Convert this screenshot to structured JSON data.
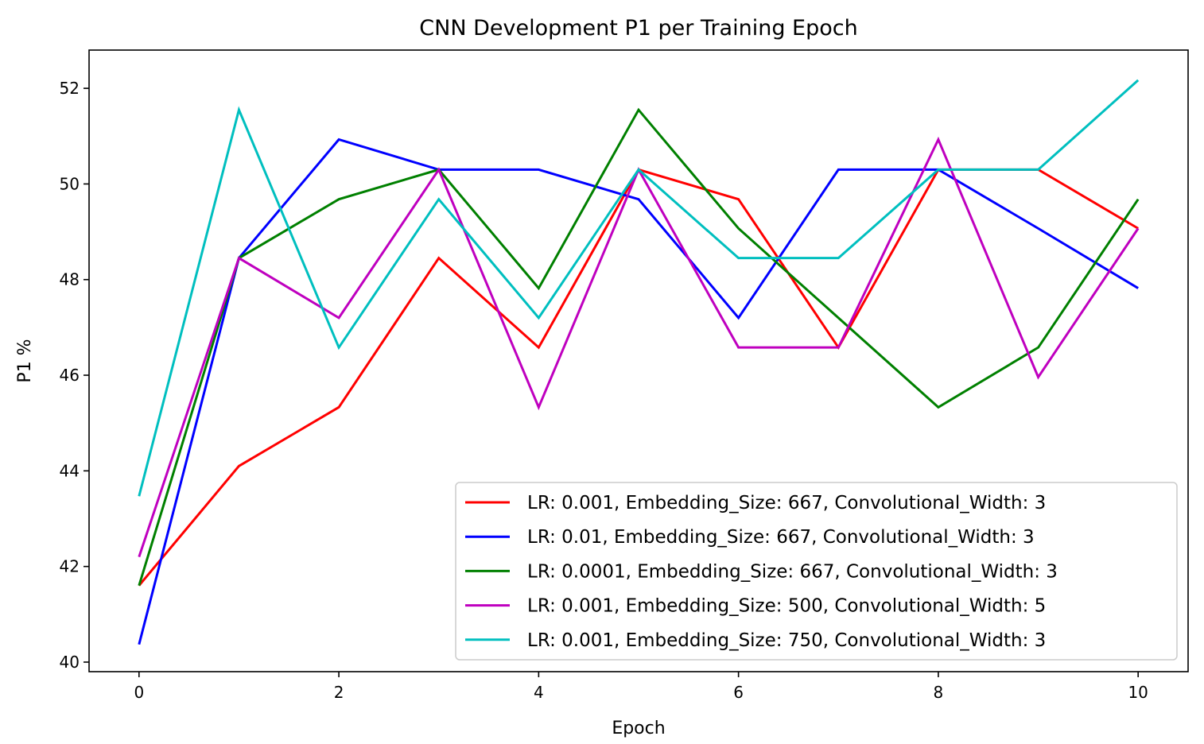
{
  "chart_data": {
    "type": "line",
    "title": "CNN Development P1 per Training Epoch",
    "xlabel": "Epoch",
    "ylabel": "P1 %",
    "xlim": [
      -0.5,
      10.5
    ],
    "ylim": [
      39.8,
      52.8
    ],
    "xticks": [
      0,
      2,
      4,
      6,
      8,
      10
    ],
    "yticks": [
      40,
      42,
      44,
      46,
      48,
      50,
      52
    ],
    "legend_position": "lower-right",
    "grid": false,
    "x": [
      0,
      1,
      2,
      3,
      4,
      5,
      6,
      7,
      8,
      9,
      10
    ],
    "series": [
      {
        "name": "LR: 0.001, Embedding_Size: 667, Convolutional_Width: 3",
        "color": "#ff0000",
        "values": [
          41.6,
          44.1,
          45.33,
          48.45,
          46.58,
          50.3,
          49.68,
          46.58,
          50.3,
          50.3,
          49.07
        ]
      },
      {
        "name": "LR: 0.01, Embedding_Size: 667, Convolutional_Width: 3",
        "color": "#0000ff",
        "values": [
          40.37,
          48.45,
          50.93,
          50.3,
          50.3,
          49.68,
          47.2,
          50.3,
          50.3,
          49.07,
          47.82
        ]
      },
      {
        "name": "LR: 0.0001, Embedding_Size: 667, Convolutional_Width: 3",
        "color": "#008000",
        "values": [
          41.6,
          48.45,
          49.68,
          50.3,
          47.82,
          51.55,
          49.07,
          47.2,
          45.33,
          46.58,
          49.68
        ]
      },
      {
        "name": "LR: 0.001, Embedding_Size: 500, Convolutional_Width: 5",
        "color": "#bf00bf",
        "values": [
          42.2,
          48.45,
          47.2,
          50.3,
          45.33,
          50.3,
          46.58,
          46.58,
          50.93,
          45.96,
          49.07
        ]
      },
      {
        "name": "LR: 0.001, Embedding_Size: 750, Convolutional_Width: 3",
        "color": "#00bfbf",
        "values": [
          43.47,
          51.55,
          46.58,
          49.68,
          47.2,
          50.3,
          48.45,
          48.45,
          50.3,
          50.3,
          52.17
        ]
      }
    ]
  }
}
